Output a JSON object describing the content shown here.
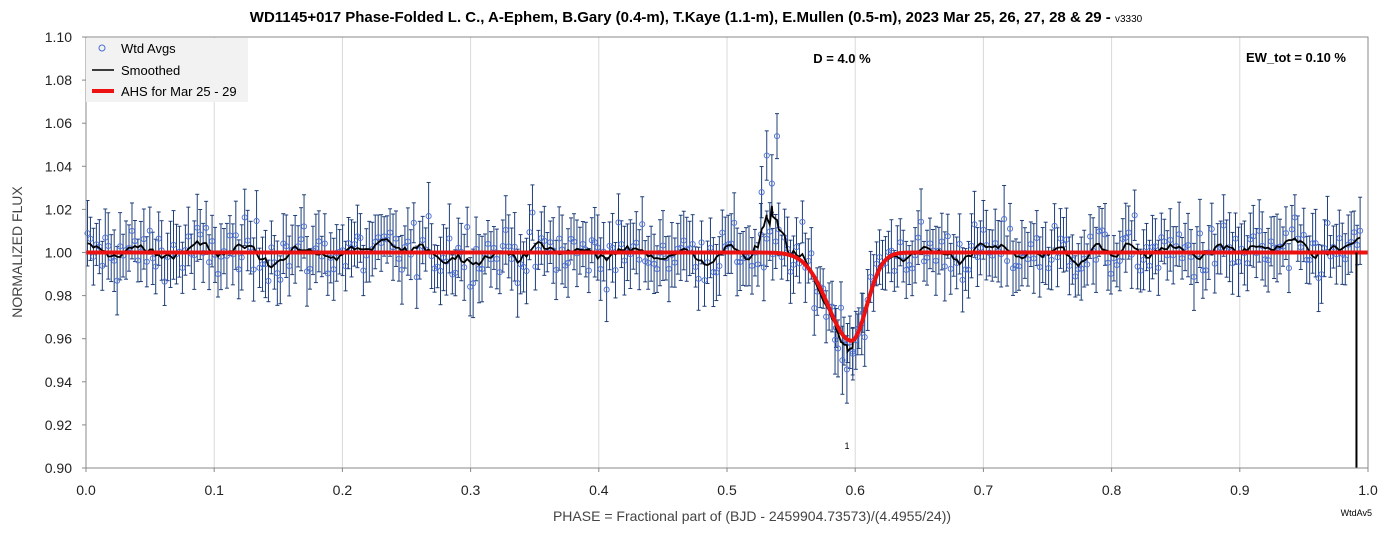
{
  "chart_data": {
    "type": "scatter",
    "title": "WD1145+017 Phase-Folded L. C., A-Ephem, B.Gary (0.4-m), T.Kaye (1.1-m), E.Mullen (0.5-m), 2023 Mar 25, 26, 27, 28 & 29 - ",
    "version": "v3330",
    "xlabel": "PHASE = Fractional part of (BJD - 2459904.73573)/(4.4955/24))",
    "ylabel": "NORMALIZED FLUX",
    "xlim": [
      0.0,
      1.0
    ],
    "ylim": [
      0.9,
      1.1
    ],
    "x_ticks": [
      "0.0",
      "0.1",
      "0.2",
      "0.3",
      "0.4",
      "0.5",
      "0.6",
      "0.7",
      "0.8",
      "0.9",
      "1.0"
    ],
    "y_ticks": [
      "0.90",
      "0.92",
      "0.94",
      "0.96",
      "0.98",
      "1.00",
      "1.02",
      "1.04",
      "1.06",
      "1.08",
      "1.10"
    ],
    "grid": "vertical",
    "legend_position": "top-left",
    "annotations": {
      "depth": "D = 4.0 %",
      "ew": "EW_tot = 0.10 %",
      "dip_label": "1",
      "corner_tag": "WtdAv5"
    },
    "series": [
      {
        "name": "Wtd Avgs",
        "style": "open-circle-with-errorbars",
        "color": "#4a6fd8",
        "errorbar_color": "#1f3f7a",
        "typical_error": 0.012
      },
      {
        "name": "Smoothed",
        "style": "line",
        "color": "#000000"
      },
      {
        "name": "AHS for Mar 25 - 29",
        "style": "line",
        "color": "#ee1111",
        "model": {
          "baseline": 1.0,
          "center": 0.597,
          "depth": 0.041,
          "width_in": 0.018,
          "width_out": 0.012
        }
      }
    ],
    "features": {
      "dip_points": [
        [
          0.585,
          0.965
        ],
        [
          0.59,
          0.95
        ],
        [
          0.594,
          0.958
        ],
        [
          0.598,
          0.954
        ],
        [
          0.602,
          0.962
        ],
        [
          0.606,
          0.972
        ]
      ],
      "outlier_points": [
        [
          0.531,
          1.045
        ],
        [
          0.539,
          1.054
        ],
        [
          0.535,
          1.032
        ],
        [
          0.527,
          1.028
        ]
      ],
      "end_marker_x": 0.991
    },
    "point_count": 430
  }
}
